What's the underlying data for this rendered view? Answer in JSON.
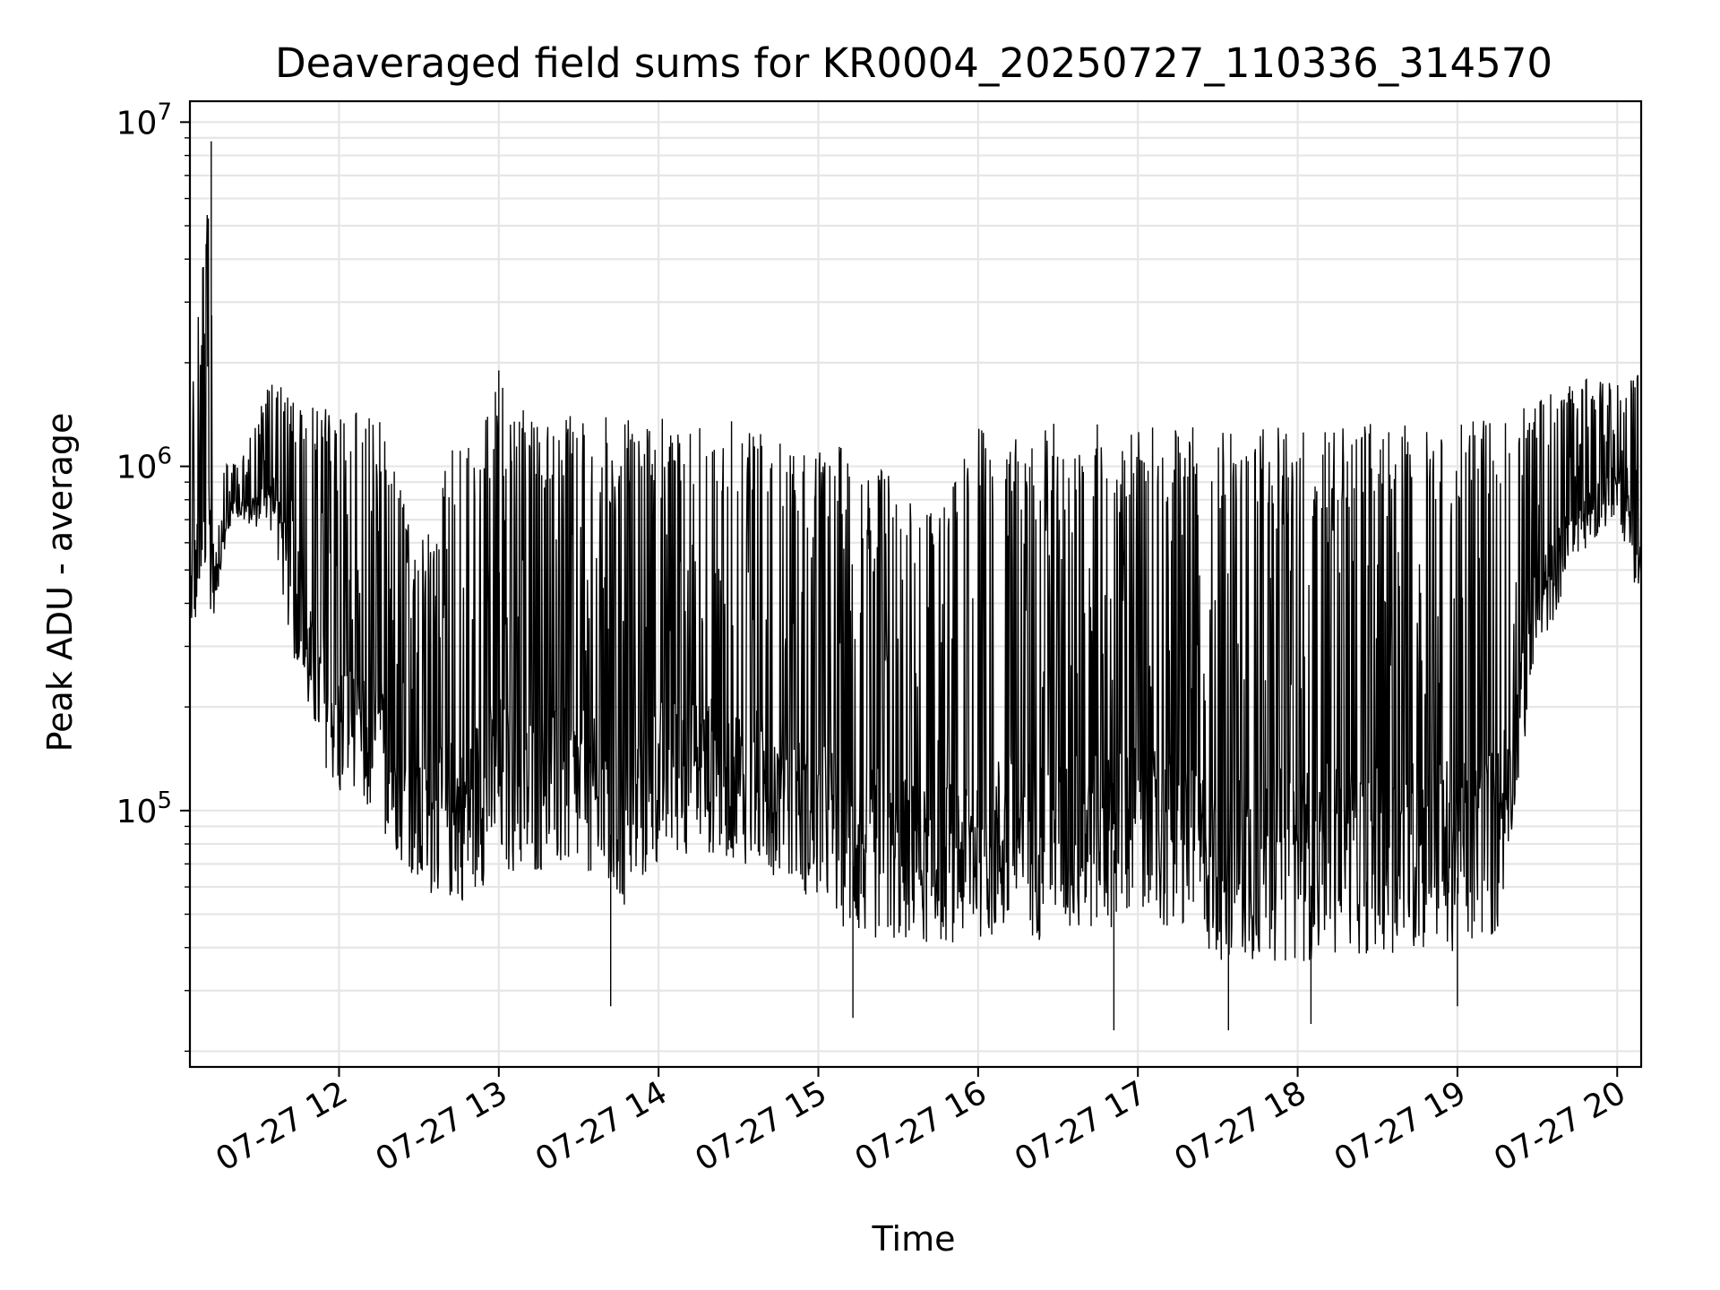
{
  "chart_data": {
    "type": "line",
    "title": "Deaveraged field sums for KR0004_20250727_110336_314570",
    "xlabel": "Time",
    "ylabel": "Peak ADU - average",
    "y_scale": "log",
    "ylim": [
      18000,
      11500000
    ],
    "xlim": [
      "2025-07-27 11:04",
      "2025-07-27 20:09"
    ],
    "grid": "both (major and minor)",
    "line_color": "#000000",
    "x_ticks": [
      {
        "t": "2025-07-27 12:00",
        "label": "07-27 12"
      },
      {
        "t": "2025-07-27 13:00",
        "label": "07-27 13"
      },
      {
        "t": "2025-07-27 14:00",
        "label": "07-27 14"
      },
      {
        "t": "2025-07-27 15:00",
        "label": "07-27 15"
      },
      {
        "t": "2025-07-27 16:00",
        "label": "07-27 16"
      },
      {
        "t": "2025-07-27 17:00",
        "label": "07-27 17"
      },
      {
        "t": "2025-07-27 18:00",
        "label": "07-27 18"
      },
      {
        "t": "2025-07-27 19:00",
        "label": "07-27 19"
      },
      {
        "t": "2025-07-27 20:00",
        "label": "07-27 20"
      }
    ],
    "y_ticks": [
      {
        "value": 100000,
        "base": "10",
        "exp": "5"
      },
      {
        "value": 1000000,
        "base": "10",
        "exp": "6"
      },
      {
        "value": 10000000,
        "base": "10",
        "exp": "7"
      }
    ],
    "series": [
      {
        "description": "noisy signal; upper envelope and lower envelope over time",
        "upper_envelope": [
          [
            "2025-07-27 11:04",
            1400000
          ],
          [
            "2025-07-27 11:12",
            8800000
          ],
          [
            "2025-07-27 11:13",
            1000000
          ],
          [
            "2025-07-27 11:25",
            1100000
          ],
          [
            "2025-07-27 11:35",
            2000000
          ],
          [
            "2025-07-27 11:45",
            1500000
          ],
          [
            "2025-07-27 12:00",
            1500000
          ],
          [
            "2025-07-27 12:15",
            1400000
          ],
          [
            "2025-07-27 12:30",
            600000
          ],
          [
            "2025-07-27 12:45",
            1300000
          ],
          [
            "2025-07-27 13:00",
            1800000
          ],
          [
            "2025-07-27 13:15",
            1400000
          ],
          [
            "2025-07-27 13:30",
            1400000
          ],
          [
            "2025-07-27 13:45",
            1400000
          ],
          [
            "2025-07-27 14:00",
            1400000
          ],
          [
            "2025-07-27 14:15",
            1400000
          ],
          [
            "2025-07-27 14:30",
            1350000
          ],
          [
            "2025-07-27 14:45",
            1200000
          ],
          [
            "2025-07-27 15:00",
            1100000
          ],
          [
            "2025-07-27 15:15",
            1200000
          ],
          [
            "2025-07-27 15:30",
            900000
          ],
          [
            "2025-07-27 15:45",
            700000
          ],
          [
            "2025-07-27 16:00",
            1300000
          ],
          [
            "2025-07-27 16:30",
            1350000
          ],
          [
            "2025-07-27 17:00",
            1300000
          ],
          [
            "2025-07-27 17:30",
            1300000
          ],
          [
            "2025-07-27 18:00",
            1300000
          ],
          [
            "2025-07-27 18:30",
            1350000
          ],
          [
            "2025-07-27 19:00",
            1350000
          ],
          [
            "2025-07-27 19:30",
            1600000
          ],
          [
            "2025-07-27 19:45",
            1800000
          ],
          [
            "2025-07-27 20:00",
            1800000
          ],
          [
            "2025-07-27 20:09",
            1900000
          ]
        ],
        "lower_envelope": [
          [
            "2025-07-27 11:04",
            300000
          ],
          [
            "2025-07-27 11:12",
            320000
          ],
          [
            "2025-07-27 11:20",
            700000
          ],
          [
            "2025-07-27 11:35",
            600000
          ],
          [
            "2025-07-27 11:45",
            200000
          ],
          [
            "2025-07-27 12:00",
            90000
          ],
          [
            "2025-07-27 12:15",
            80000
          ],
          [
            "2025-07-27 12:30",
            50000
          ],
          [
            "2025-07-27 12:45",
            45000
          ],
          [
            "2025-07-27 13:00",
            55000
          ],
          [
            "2025-07-27 13:15",
            55000
          ],
          [
            "2025-07-27 13:30",
            55000
          ],
          [
            "2025-07-27 13:45",
            40000
          ],
          [
            "2025-07-27 14:00",
            60000
          ],
          [
            "2025-07-27 14:15",
            65000
          ],
          [
            "2025-07-27 14:30",
            60000
          ],
          [
            "2025-07-27 14:45",
            55000
          ],
          [
            "2025-07-27 15:00",
            45000
          ],
          [
            "2025-07-27 15:15",
            35000
          ],
          [
            "2025-07-27 15:30",
            35000
          ],
          [
            "2025-07-27 15:45",
            35000
          ],
          [
            "2025-07-27 16:00",
            35000
          ],
          [
            "2025-07-27 16:30",
            35000
          ],
          [
            "2025-07-27 17:00",
            40000
          ],
          [
            "2025-07-27 17:30",
            30000
          ],
          [
            "2025-07-27 18:00",
            30000
          ],
          [
            "2025-07-27 18:30",
            32000
          ],
          [
            "2025-07-27 19:00",
            32000
          ],
          [
            "2025-07-27 19:15",
            35000
          ],
          [
            "2025-07-27 19:30",
            250000
          ],
          [
            "2025-07-27 19:45",
            500000
          ],
          [
            "2025-07-27 20:00",
            700000
          ],
          [
            "2025-07-27 20:09",
            350000
          ]
        ],
        "notable_points": [
          [
            "2025-07-27 11:12",
            8800000
          ],
          [
            "2025-07-27 13:00",
            1900000
          ],
          [
            "2025-07-27 13:42",
            27000
          ],
          [
            "2025-07-27 15:13",
            25000
          ],
          [
            "2025-07-27 16:51",
            23000
          ],
          [
            "2025-07-27 17:34",
            23000
          ],
          [
            "2025-07-27 18:05",
            24000
          ],
          [
            "2025-07-27 19:00",
            27000
          ]
        ]
      }
    ]
  }
}
